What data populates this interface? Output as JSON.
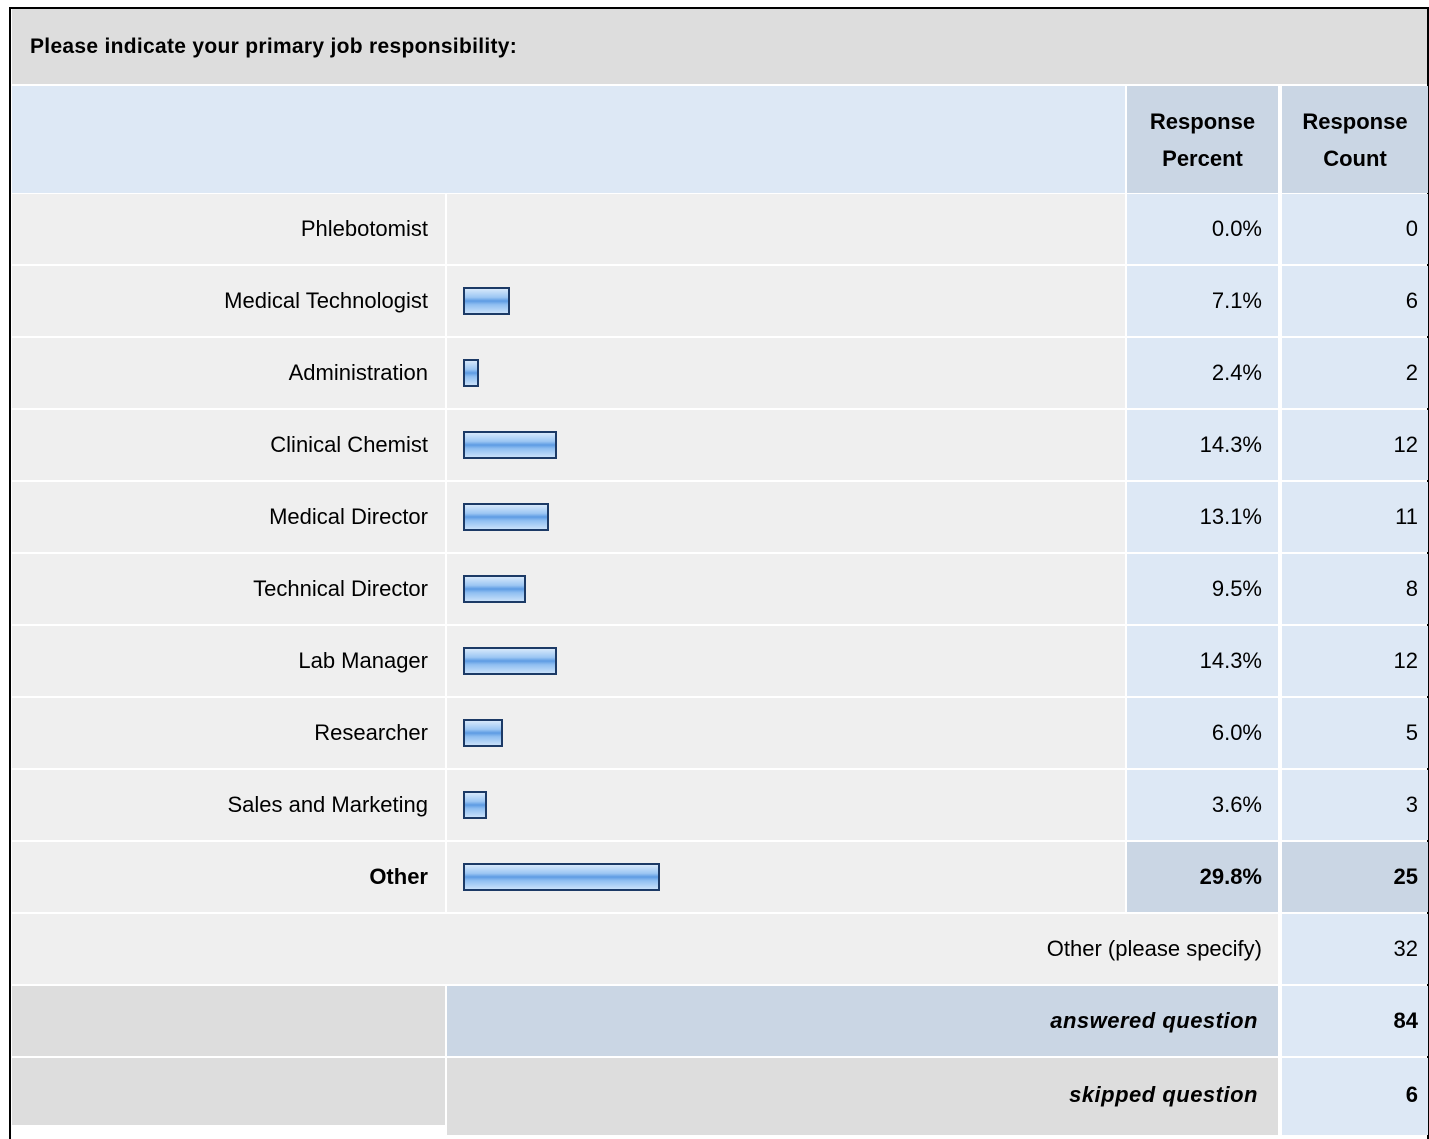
{
  "title": "Please indicate your primary job responsibility:",
  "columns": [
    "Response Percent",
    "Response Count"
  ],
  "rows": [
    {
      "label": "Phlebotomist",
      "percent": 0.0,
      "percent_label": "0.0%",
      "count": 0
    },
    {
      "label": "Medical Technologist",
      "percent": 7.1,
      "percent_label": "7.1%",
      "count": 6
    },
    {
      "label": "Administration",
      "percent": 2.4,
      "percent_label": "2.4%",
      "count": 2
    },
    {
      "label": "Clinical Chemist",
      "percent": 14.3,
      "percent_label": "14.3%",
      "count": 12
    },
    {
      "label": "Medical Director",
      "percent": 13.1,
      "percent_label": "13.1%",
      "count": 11
    },
    {
      "label": "Technical Director",
      "percent": 9.5,
      "percent_label": "9.5%",
      "count": 8
    },
    {
      "label": "Lab Manager",
      "percent": 14.3,
      "percent_label": "14.3%",
      "count": 12
    },
    {
      "label": "Researcher",
      "percent": 6.0,
      "percent_label": "6.0%",
      "count": 5
    },
    {
      "label": "Sales and Marketing",
      "percent": 3.6,
      "percent_label": "3.6%",
      "count": 3
    },
    {
      "label": "Other",
      "percent": 29.8,
      "percent_label": "29.8%",
      "count": 25
    }
  ],
  "other_specify": {
    "label": "Other (please specify)",
    "count": 32
  },
  "answered": {
    "label": "answered question",
    "count": 84
  },
  "skipped": {
    "label": "skipped question",
    "count": 6
  }
}
